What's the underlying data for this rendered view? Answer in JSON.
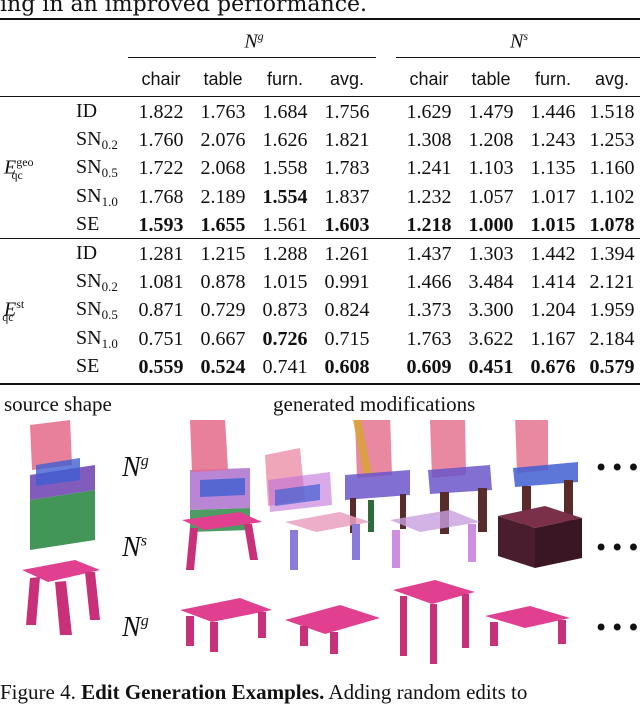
{
  "intro_text": "ing in an improved performance.",
  "groups": [
    {
      "name": "N",
      "sup": "g"
    },
    {
      "name": "N",
      "sup": "s"
    }
  ],
  "columns": [
    "chair",
    "table",
    "furn.",
    "avg.",
    "chair",
    "table",
    "furn.",
    "avg."
  ],
  "blocks": [
    {
      "metric": "E",
      "metric_sup": "geo",
      "metric_sub": "qc",
      "rows": [
        {
          "method": "ID",
          "sub": "",
          "values": [
            "1.822",
            "1.763",
            "1.684",
            "1.756",
            "1.629",
            "1.479",
            "1.446",
            "1.518"
          ],
          "bold": []
        },
        {
          "method": "SN",
          "sub": "0.2",
          "values": [
            "1.760",
            "2.076",
            "1.626",
            "1.821",
            "1.308",
            "1.208",
            "1.243",
            "1.253"
          ],
          "bold": []
        },
        {
          "method": "SN",
          "sub": "0.5",
          "values": [
            "1.722",
            "2.068",
            "1.558",
            "1.783",
            "1.241",
            "1.103",
            "1.135",
            "1.160"
          ],
          "bold": []
        },
        {
          "method": "SN",
          "sub": "1.0",
          "values": [
            "1.768",
            "2.189",
            "1.554",
            "1.837",
            "1.232",
            "1.057",
            "1.017",
            "1.102"
          ],
          "bold": [
            2
          ]
        },
        {
          "method": "SE",
          "sub": "",
          "values": [
            "1.593",
            "1.655",
            "1.561",
            "1.603",
            "1.218",
            "1.000",
            "1.015",
            "1.078"
          ],
          "bold": [
            0,
            1,
            3,
            4,
            5,
            6,
            7
          ]
        }
      ]
    },
    {
      "metric": "E",
      "metric_sup": "st",
      "metric_sub": "qc",
      "rows": [
        {
          "method": "ID",
          "sub": "",
          "values": [
            "1.281",
            "1.215",
            "1.288",
            "1.261",
            "1.437",
            "1.303",
            "1.442",
            "1.394"
          ],
          "bold": []
        },
        {
          "method": "SN",
          "sub": "0.2",
          "values": [
            "1.081",
            "0.878",
            "1.015",
            "0.991",
            "1.466",
            "3.484",
            "1.414",
            "2.121"
          ],
          "bold": []
        },
        {
          "method": "SN",
          "sub": "0.5",
          "values": [
            "0.871",
            "0.729",
            "0.873",
            "0.824",
            "1.373",
            "3.300",
            "1.204",
            "1.959"
          ],
          "bold": []
        },
        {
          "method": "SN",
          "sub": "1.0",
          "values": [
            "0.751",
            "0.667",
            "0.726",
            "0.715",
            "1.763",
            "3.622",
            "1.167",
            "2.184"
          ],
          "bold": [
            2
          ]
        },
        {
          "method": "SE",
          "sub": "",
          "values": [
            "0.559",
            "0.524",
            "0.741",
            "0.608",
            "0.609",
            "0.451",
            "0.676",
            "0.579"
          ],
          "bold": [
            0,
            1,
            3,
            4,
            5,
            6,
            7
          ]
        }
      ]
    }
  ],
  "figure": {
    "source_label": "source shape",
    "generated_label": "generated modifications",
    "row_labels": [
      {
        "name": "N",
        "sup": "g"
      },
      {
        "name": "N",
        "sup": "s"
      },
      {
        "name": "N",
        "sup": "g"
      }
    ],
    "ellipsis": "•••"
  },
  "caption": {
    "prefix": "Figure 4. ",
    "bold": "Edit Generation Examples.",
    "rest": " Adding random edits to"
  }
}
